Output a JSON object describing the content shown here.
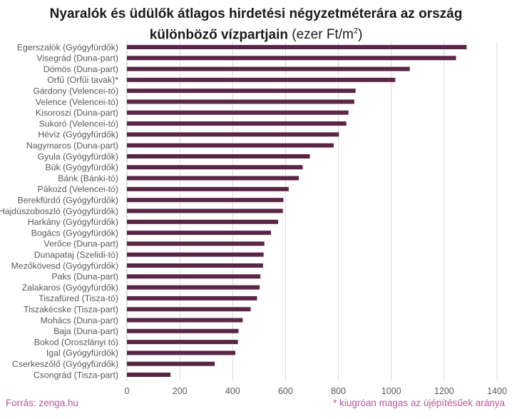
{
  "title": {
    "line1": "Nyaralók és üdülők átlagos hirdetési négyzetméterára az ország",
    "line2_bold": "különböző vízpartjain",
    "unit_prefix": " (ezer Ft/m",
    "unit_sup": "2",
    "unit_suffix": ")"
  },
  "chart_data": {
    "type": "bar",
    "orientation": "horizontal",
    "title": "Nyaralók és üdülők átlagos hirdetési négyzetméterára az ország különböző vízpartjain (ezer Ft/m2)",
    "xlabel": "",
    "ylabel": "",
    "xlim": [
      0,
      1400
    ],
    "xticks": [
      0,
      200,
      400,
      600,
      800,
      1000,
      1200,
      1400
    ],
    "grid": true,
    "bar_color": "#5a2645",
    "categories": [
      "Egerszalók (Gyógyfürdők)",
      "Visegrád (Duna-part)",
      "Dömös (Duna-part)",
      "Orfű (Orfűi tavak)*",
      "Gárdony (Velencei-tó)",
      "Velence (Velencei-tó)",
      "Kisoroszi (Duna-part)",
      "Sukoró (Velencei-tó)",
      "Hévíz (Gyógyfürdők)",
      "Nagymaros (Duna-part)",
      "Gyula (Gyógyfürdők)",
      "Bük (Gyógyfürdők)",
      "Bánk (Bánki-tó)",
      "Pákozd (Velencei-tó)",
      "Berekfürdő (Gyógyfürdők)",
      "Hajdúszoboszló (Gyógyfürdők)",
      "Harkány (Gyógyfürdők)",
      "Bogács (Gyógyfürdők)",
      "Verőce (Duna-part)",
      "Dunapataj (Szelidi-tó)",
      "Mezőkövesd (Gyógyfürdők)",
      "Paks (Duna-part)",
      "Zalakaros (Gyógyfürdők)",
      "Tiszafüred (Tisza-tó)",
      "Tiszakécske (Tisza-part)",
      "Mohács (Duna-part)",
      "Baja (Duna-part)",
      "Bokod (Oroszlányi tó)",
      "Igal (Gyógyfürdők)",
      "Cserkeszőlő (Gyógyfürdők)",
      "Csongrád (Tisza-part)"
    ],
    "values": [
      1285,
      1245,
      1070,
      1015,
      865,
      860,
      838,
      830,
      802,
      782,
      692,
      665,
      650,
      612,
      592,
      590,
      572,
      545,
      520,
      517,
      515,
      505,
      502,
      492,
      468,
      438,
      422,
      420,
      410,
      332,
      165
    ]
  },
  "footer": {
    "source": "Forrás: zenga.hu",
    "note": "* kiugróan magas az újépítésűek aránya"
  }
}
